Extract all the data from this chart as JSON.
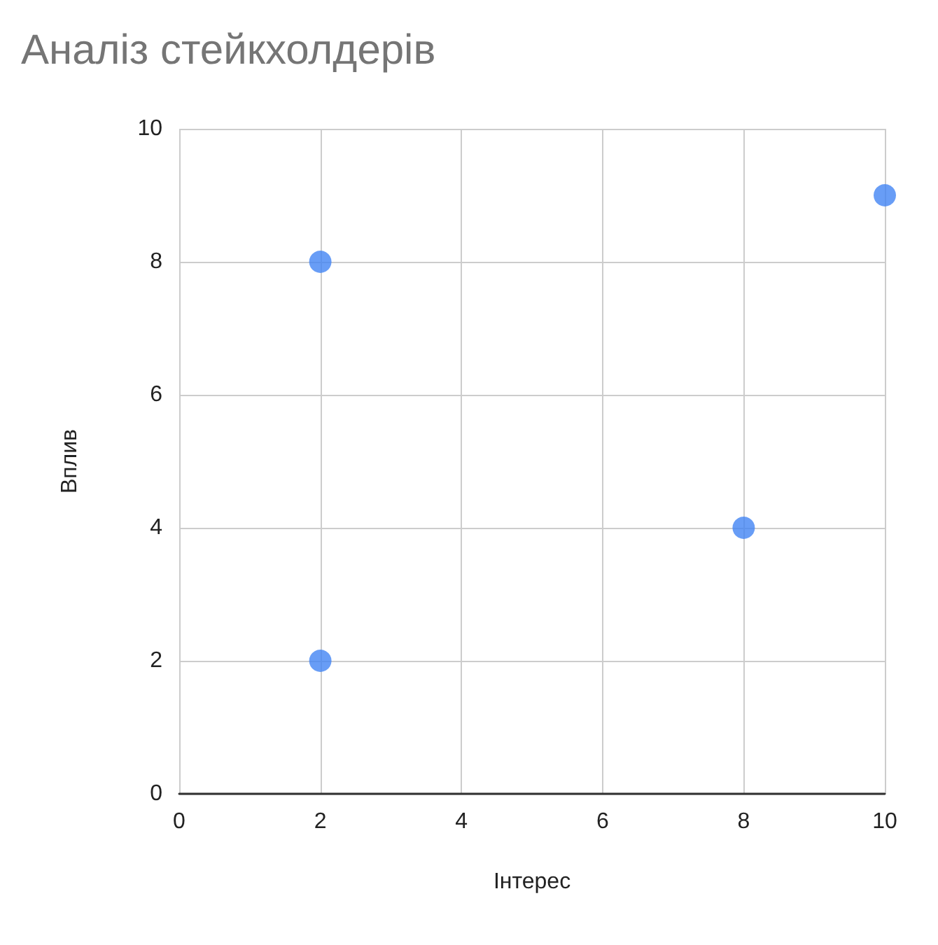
{
  "chart_data": {
    "type": "scatter",
    "title": "Аналіз стейкхолдерів",
    "xlabel": "Інтерес",
    "ylabel": "Вплив",
    "x": [
      2,
      2,
      8,
      10
    ],
    "series": [
      {
        "color": "#4285f4",
        "values": [
          8,
          2,
          4,
          9
        ]
      }
    ],
    "xlim": [
      0,
      10
    ],
    "xticks": [
      0,
      2,
      4,
      6,
      8,
      10
    ],
    "ylim": [
      0,
      10
    ],
    "yticks": [
      0,
      2,
      4,
      6,
      8,
      10
    ],
    "grid": true,
    "marker": "circle"
  }
}
